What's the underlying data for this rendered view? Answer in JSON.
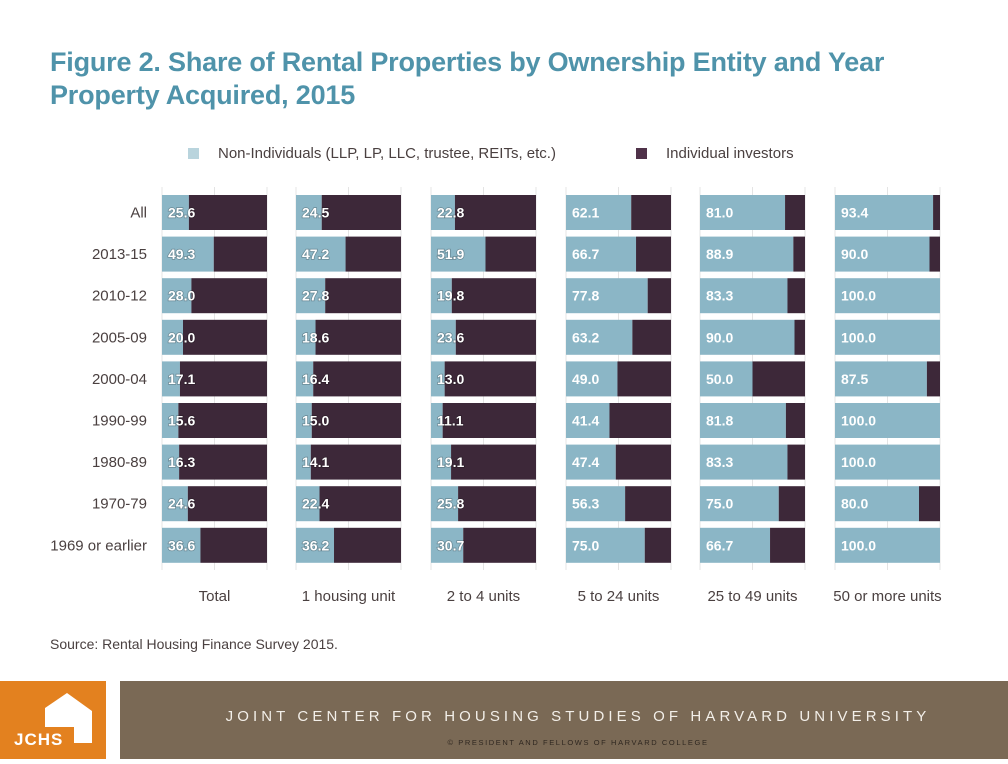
{
  "title": "Figure 2. Share of Rental Properties by Ownership Entity and Year Property Acquired, 2015",
  "source": "Source: Rental Housing Finance Survey 2015.",
  "footer": {
    "logo_text": "JCHS",
    "title": "JOINT CENTER FOR HOUSING STUDIES OF HARVARD UNIVERSITY",
    "copyright": "© PRESIDENT AND FELLOWS OF HARVARD COLLEGE"
  },
  "colors": {
    "non_individuals": "#8bb6c6",
    "individual_investors": "#3d2839",
    "title": "#4f93aa",
    "footer_orange": "#e3811f",
    "footer_brown": "#7a6955"
  },
  "chart_data": {
    "type": "bar",
    "subtype": "stacked-horizontal-small-multiples",
    "title": "Figure 2. Share of Rental Properties by Ownership Entity and Year Property Acquired, 2015",
    "xlim": [
      0,
      100
    ],
    "unit": "percent",
    "legend_position": "top",
    "legend": [
      {
        "name": "Non-Individuals (LLP, LP, LLC, trustee, REITs, etc.)",
        "color": "#8bb6c6"
      },
      {
        "name": "Individual investors",
        "color": "#3d2839"
      }
    ],
    "categories": [
      "All",
      "2013-15",
      "2010-12",
      "2005-09",
      "2000-04",
      "1990-99",
      "1980-89",
      "1970-79",
      "1969 or earlier"
    ],
    "panels": [
      {
        "name": "Total",
        "non_individuals": [
          25.6,
          49.3,
          28.0,
          20.0,
          17.1,
          15.6,
          16.3,
          24.6,
          36.6
        ]
      },
      {
        "name": "1 housing unit",
        "non_individuals": [
          24.5,
          47.2,
          27.8,
          18.6,
          16.4,
          15.0,
          14.1,
          22.4,
          36.2
        ]
      },
      {
        "name": "2 to 4 units",
        "non_individuals": [
          22.8,
          51.9,
          19.8,
          23.6,
          13.0,
          11.1,
          19.1,
          25.8,
          30.7
        ]
      },
      {
        "name": "5 to 24 units",
        "non_individuals": [
          62.1,
          66.7,
          77.8,
          63.2,
          49.0,
          41.4,
          47.4,
          56.3,
          75.0
        ]
      },
      {
        "name": "25 to 49 units",
        "non_individuals": [
          81.0,
          88.9,
          83.3,
          90.0,
          50.0,
          81.8,
          83.3,
          75.0,
          66.7
        ]
      },
      {
        "name": "50 or more units",
        "non_individuals": [
          93.4,
          90.0,
          100.0,
          100.0,
          87.5,
          100.0,
          100.0,
          80.0,
          100.0
        ]
      }
    ]
  }
}
